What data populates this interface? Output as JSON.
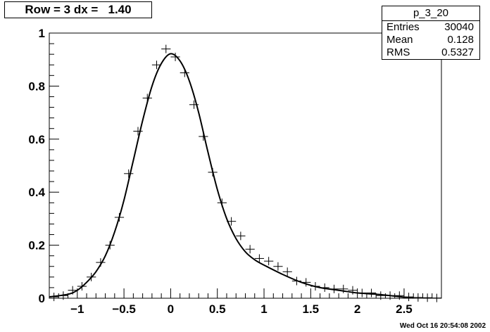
{
  "title": "Row = 3 dx =   1.40",
  "stats": {
    "name": "p_3_20",
    "rows": [
      {
        "label": "Entries",
        "value": "30040"
      },
      {
        "label": "Mean",
        "value": "0.128"
      },
      {
        "label": "RMS",
        "value": "0.5327"
      }
    ]
  },
  "timestamp": "Wed Oct 16 20:54:08 2002",
  "chart_data": {
    "type": "scatter",
    "title": "Row = 3 dx =   1.40",
    "xlabel": "",
    "ylabel": "",
    "xlim": [
      -1.3,
      2.9
    ],
    "ylim": [
      0,
      1
    ],
    "x_ticks": [
      -1,
      -0.5,
      0,
      0.5,
      1,
      1.5,
      2,
      2.5
    ],
    "x_tick_labels": [
      "−1",
      "−0.5",
      "0",
      "0.5",
      "1",
      "1.5",
      "2",
      "2.5"
    ],
    "y_ticks": [
      0,
      0.2,
      0.4,
      0.6,
      0.8,
      1
    ],
    "y_tick_labels": [
      "0",
      "0.2",
      "0.4",
      "0.6",
      "0.8",
      "1"
    ],
    "bin_width": 0.1,
    "points": [
      {
        "x": -1.25,
        "y": 0.005
      },
      {
        "x": -1.15,
        "y": 0.01
      },
      {
        "x": -1.05,
        "y": 0.03
      },
      {
        "x": -0.95,
        "y": 0.045
      },
      {
        "x": -0.85,
        "y": 0.08
      },
      {
        "x": -0.75,
        "y": 0.135
      },
      {
        "x": -0.65,
        "y": 0.2
      },
      {
        "x": -0.55,
        "y": 0.305
      },
      {
        "x": -0.45,
        "y": 0.47
      },
      {
        "x": -0.35,
        "y": 0.63
      },
      {
        "x": -0.25,
        "y": 0.755
      },
      {
        "x": -0.15,
        "y": 0.88
      },
      {
        "x": -0.05,
        "y": 0.94
      },
      {
        "x": 0.05,
        "y": 0.91
      },
      {
        "x": 0.15,
        "y": 0.85
      },
      {
        "x": 0.25,
        "y": 0.73
      },
      {
        "x": 0.35,
        "y": 0.61
      },
      {
        "x": 0.45,
        "y": 0.475
      },
      {
        "x": 0.55,
        "y": 0.36
      },
      {
        "x": 0.65,
        "y": 0.29
      },
      {
        "x": 0.75,
        "y": 0.235
      },
      {
        "x": 0.85,
        "y": 0.185
      },
      {
        "x": 0.95,
        "y": 0.15
      },
      {
        "x": 1.05,
        "y": 0.14
      },
      {
        "x": 1.15,
        "y": 0.12
      },
      {
        "x": 1.25,
        "y": 0.1
      },
      {
        "x": 1.35,
        "y": 0.065
      },
      {
        "x": 1.45,
        "y": 0.06
      },
      {
        "x": 1.55,
        "y": 0.045
      },
      {
        "x": 1.65,
        "y": 0.04
      },
      {
        "x": 1.75,
        "y": 0.035
      },
      {
        "x": 1.85,
        "y": 0.035
      },
      {
        "x": 1.95,
        "y": 0.03
      },
      {
        "x": 2.05,
        "y": 0.02
      },
      {
        "x": 2.15,
        "y": 0.02
      },
      {
        "x": 2.25,
        "y": 0.01
      },
      {
        "x": 2.35,
        "y": 0.01
      },
      {
        "x": 2.45,
        "y": 0.01
      },
      {
        "x": 2.55,
        "y": 0.005
      },
      {
        "x": 2.65,
        "y": 0.003
      },
      {
        "x": 2.75,
        "y": 0.002
      },
      {
        "x": 2.85,
        "y": 0.001
      }
    ],
    "fit_curve": [
      {
        "x": -1.3,
        "y": 0.005
      },
      {
        "x": -1.1,
        "y": 0.015
      },
      {
        "x": -1.0,
        "y": 0.03
      },
      {
        "x": -0.9,
        "y": 0.06
      },
      {
        "x": -0.8,
        "y": 0.1
      },
      {
        "x": -0.7,
        "y": 0.16
      },
      {
        "x": -0.6,
        "y": 0.25
      },
      {
        "x": -0.5,
        "y": 0.37
      },
      {
        "x": -0.4,
        "y": 0.52
      },
      {
        "x": -0.3,
        "y": 0.67
      },
      {
        "x": -0.2,
        "y": 0.8
      },
      {
        "x": -0.1,
        "y": 0.885
      },
      {
        "x": 0.0,
        "y": 0.922
      },
      {
        "x": 0.1,
        "y": 0.895
      },
      {
        "x": 0.2,
        "y": 0.82
      },
      {
        "x": 0.3,
        "y": 0.7
      },
      {
        "x": 0.4,
        "y": 0.55
      },
      {
        "x": 0.5,
        "y": 0.41
      },
      {
        "x": 0.6,
        "y": 0.3
      },
      {
        "x": 0.7,
        "y": 0.225
      },
      {
        "x": 0.8,
        "y": 0.175
      },
      {
        "x": 0.9,
        "y": 0.145
      },
      {
        "x": 1.0,
        "y": 0.125
      },
      {
        "x": 1.2,
        "y": 0.09
      },
      {
        "x": 1.4,
        "y": 0.06
      },
      {
        "x": 1.6,
        "y": 0.04
      },
      {
        "x": 1.8,
        "y": 0.03
      },
      {
        "x": 2.0,
        "y": 0.02
      },
      {
        "x": 2.2,
        "y": 0.015
      },
      {
        "x": 2.4,
        "y": 0.008
      },
      {
        "x": 2.5,
        "y": 0.004
      },
      {
        "x": 2.6,
        "y": 0.001
      }
    ],
    "grid": false,
    "legend": "top-right"
  }
}
